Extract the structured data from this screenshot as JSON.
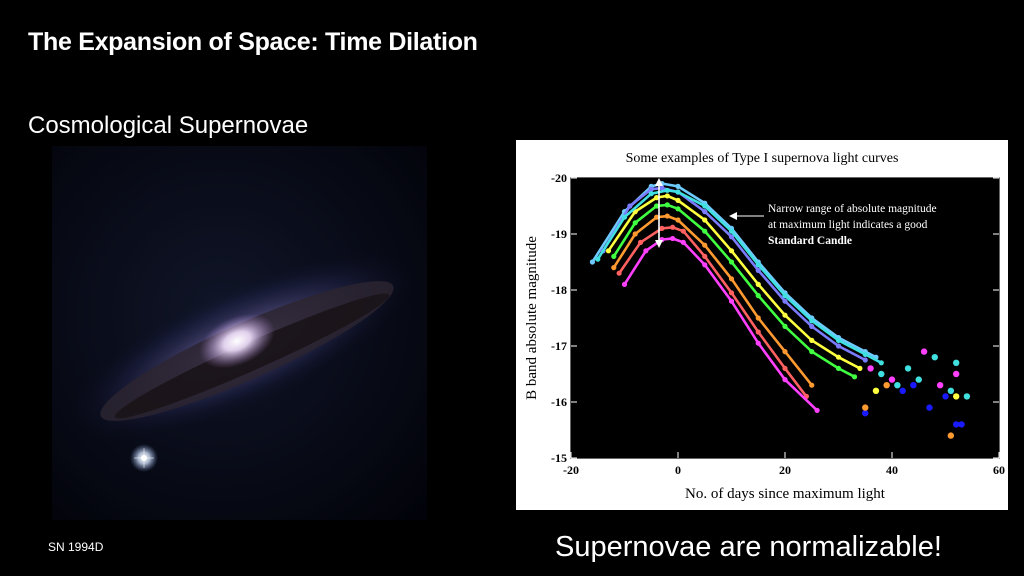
{
  "slide": {
    "title": "The Expansion of Space: Time Dilation",
    "subtitle": "Cosmological Supernovae",
    "image_caption": "SN 1994D",
    "conclusion": "Supernovae are normalizable!"
  },
  "chart_data": {
    "type": "line",
    "title": "Some examples of Type I supernova light curves",
    "xlabel": "No. of days since maximum light",
    "ylabel": "B band absolute magnitude",
    "xlim": [
      -20,
      60
    ],
    "ylim": [
      -15,
      -20
    ],
    "y_inverted": true,
    "xticks": [
      "-20",
      "0",
      "20",
      "40",
      "60"
    ],
    "yticks": [
      "-20",
      "-19",
      "-18",
      "-17",
      "-16",
      "-15"
    ],
    "annotation": {
      "lines": [
        "Narrow range of absolute magnitude",
        "at maximum light indicates a good"
      ],
      "bold": "Standard Candle"
    },
    "series": [
      {
        "color": "#6ecbff",
        "x": [
          -16,
          -10,
          -5,
          -3,
          0,
          5,
          10,
          15,
          20,
          25,
          30,
          35,
          37
        ],
        "y": [
          -18.5,
          -19.4,
          -19.85,
          -19.9,
          -19.85,
          -19.55,
          -19.1,
          -18.5,
          -17.95,
          -17.5,
          -17.15,
          -16.9,
          -16.8
        ]
      },
      {
        "color": "#7b7bff",
        "x": [
          -14,
          -9,
          -5,
          -3,
          0,
          5,
          10,
          15,
          20,
          25,
          30,
          35
        ],
        "y": [
          -18.7,
          -19.5,
          -19.8,
          -19.82,
          -19.75,
          -19.4,
          -18.95,
          -18.35,
          -17.8,
          -17.35,
          -17.0,
          -16.75
        ]
      },
      {
        "color": "#ffff40",
        "x": [
          -13,
          -8,
          -4,
          -2,
          0,
          5,
          10,
          15,
          20,
          25,
          30,
          34
        ],
        "y": [
          -18.7,
          -19.4,
          -19.65,
          -19.68,
          -19.6,
          -19.25,
          -18.7,
          -18.1,
          -17.55,
          -17.1,
          -16.8,
          -16.6
        ]
      },
      {
        "color": "#40ff40",
        "x": [
          -12,
          -8,
          -4,
          -2,
          0,
          5,
          10,
          15,
          20,
          25,
          30,
          33
        ],
        "y": [
          -18.6,
          -19.2,
          -19.5,
          -19.52,
          -19.45,
          -19.05,
          -18.5,
          -17.9,
          -17.35,
          -16.9,
          -16.6,
          -16.45
        ]
      },
      {
        "color": "#ff9a30",
        "x": [
          -12,
          -8,
          -4,
          -2,
          0,
          5,
          10,
          15,
          20,
          25
        ],
        "y": [
          -18.4,
          -19.0,
          -19.3,
          -19.32,
          -19.25,
          -18.8,
          -18.2,
          -17.5,
          -16.9,
          -16.3
        ]
      },
      {
        "color": "#ff6060",
        "x": [
          -11,
          -7,
          -3,
          -1,
          1,
          5,
          10,
          15,
          20,
          24
        ],
        "y": [
          -18.3,
          -18.85,
          -19.1,
          -19.12,
          -19.05,
          -18.6,
          -17.95,
          -17.25,
          -16.6,
          -16.1
        ]
      },
      {
        "color": "#ff40ff",
        "x": [
          -10,
          -6,
          -3,
          -1,
          1,
          5,
          10,
          15,
          20,
          26
        ],
        "y": [
          -18.1,
          -18.7,
          -18.9,
          -18.92,
          -18.85,
          -18.45,
          -17.8,
          -17.05,
          -16.4,
          -15.85
        ]
      },
      {
        "color": "#40e0e0",
        "x": [
          -15,
          -10,
          -5,
          -2,
          0,
          5,
          10,
          15,
          20,
          25,
          30,
          35,
          38
        ],
        "y": [
          -18.55,
          -19.3,
          -19.72,
          -19.78,
          -19.75,
          -19.5,
          -19.05,
          -18.45,
          -17.9,
          -17.45,
          -17.1,
          -16.85,
          -16.7
        ]
      }
    ],
    "scatter": [
      {
        "color": "#1a1aff",
        "x": [
          35,
          42,
          44,
          47,
          50,
          52,
          53
        ],
        "y": [
          -15.8,
          -16.2,
          -16.3,
          -15.9,
          -16.1,
          -15.6,
          -15.6
        ]
      },
      {
        "color": "#40e0e0",
        "x": [
          38,
          41,
          43,
          45,
          48,
          51,
          52,
          54
        ],
        "y": [
          -16.5,
          -16.3,
          -16.6,
          -16.4,
          -16.8,
          -16.2,
          -16.7,
          -16.1
        ]
      },
      {
        "color": "#ff40ff",
        "x": [
          36,
          40,
          46,
          49,
          52
        ],
        "y": [
          -16.6,
          -16.4,
          -16.9,
          -16.3,
          -16.5
        ]
      },
      {
        "color": "#ff9a30",
        "x": [
          35,
          39,
          51
        ],
        "y": [
          -15.9,
          -16.3,
          -15.4
        ]
      },
      {
        "color": "#ffff40",
        "x": [
          37,
          52
        ],
        "y": [
          -16.2,
          -16.1
        ]
      }
    ]
  }
}
